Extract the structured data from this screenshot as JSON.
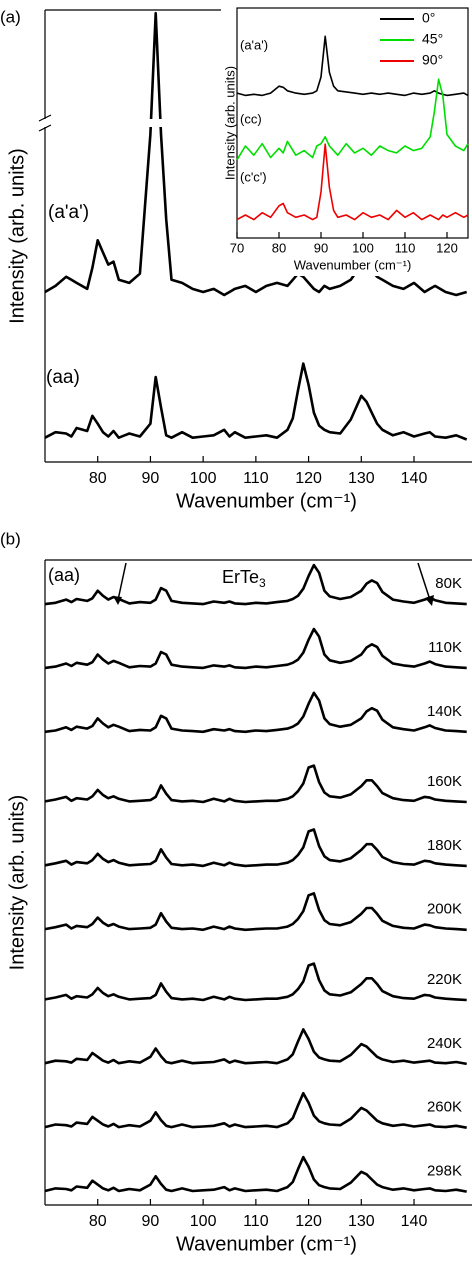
{
  "chart_data": [
    {
      "type": "line",
      "panel_label": "(a)",
      "x_label": "Wavenumber (cm⁻¹)",
      "y_label": "Intensity (arb. units)",
      "x": [
        70,
        72,
        74,
        75,
        76,
        78,
        79,
        80,
        81,
        82,
        83,
        84,
        86,
        88,
        90,
        91,
        92,
        93,
        94,
        96,
        98,
        100,
        102,
        104,
        105,
        106,
        108,
        110,
        112,
        114,
        116,
        117,
        118,
        119,
        120,
        121,
        122,
        123,
        124,
        126,
        128,
        130,
        131,
        132,
        133,
        134,
        136,
        138,
        140,
        142,
        143,
        144,
        146,
        148,
        150
      ],
      "xlim": [
        70,
        151
      ],
      "xticks": [
        80,
        90,
        100,
        110,
        120,
        130,
        140
      ],
      "ylim": [
        0,
        300
      ],
      "ybreak": [
        55,
        200
      ],
      "series": [
        {
          "name": "(a'a')",
          "color": "#000000",
          "values": [
            28.0,
            29.0,
            30.5,
            30.0,
            29.5,
            28.5,
            32.0,
            36.5,
            34.5,
            32.5,
            33.0,
            30.0,
            29.5,
            31.0,
            54.0,
            297,
            54.0,
            40.0,
            30.0,
            29.5,
            28.5,
            28.0,
            28.5,
            27.5,
            28.0,
            28.5,
            29.0,
            28.0,
            29.0,
            29.5,
            29.0,
            30.0,
            31.0,
            30.5,
            29.5,
            28.5,
            28.0,
            29.0,
            28.5,
            29.0,
            30.0,
            32.5,
            32.0,
            31.5,
            30.5,
            30.0,
            29.0,
            28.5,
            29.5,
            28.0,
            28.5,
            29.0,
            28.0,
            27.5,
            28.0
          ]
        },
        {
          "name": "(aa)",
          "color": "#000000",
          "values": [
            4.0,
            4.9,
            4.7,
            4.2,
            5.6,
            5.1,
            7.6,
            6.3,
            4.9,
            4.2,
            5.1,
            4.0,
            4.7,
            4.2,
            6.3,
            14.0,
            9.0,
            4.4,
            4.0,
            4.9,
            4.0,
            4.2,
            4.4,
            5.3,
            4.2,
            4.9,
            4.0,
            4.2,
            4.4,
            4.0,
            5.3,
            7.2,
            11.8,
            16.2,
            12.7,
            8.1,
            6.0,
            5.3,
            4.9,
            4.7,
            7.0,
            10.9,
            9.9,
            8.1,
            6.3,
            5.3,
            4.4,
            4.9,
            4.2,
            4.7,
            4.9,
            4.2,
            4.0,
            4.4,
            3.7
          ]
        }
      ]
    },
    {
      "type": "line",
      "x_label": "Wavenumber (cm⁻¹)",
      "y_label": "Intensity (arb. units)",
      "x": [
        70,
        72,
        74,
        76,
        78,
        80,
        81,
        82,
        84,
        86,
        88,
        89,
        90,
        91,
        92,
        93,
        94,
        96,
        98,
        100,
        102,
        104,
        106,
        108,
        110,
        112,
        114,
        116,
        117,
        118,
        119,
        120,
        122,
        124,
        125
      ],
      "xlim": [
        70,
        125
      ],
      "xticks": [
        70,
        80,
        90,
        100,
        110,
        120
      ],
      "ylim": [
        0,
        100
      ],
      "legend": "upper right",
      "annotations": [
        "(a'a')",
        "(cc)",
        "(c'c')"
      ],
      "series": [
        {
          "name": "0°",
          "color": "#000000",
          "values": [
            63,
            62,
            62.5,
            62,
            63,
            66,
            65.5,
            64,
            63,
            62.5,
            63,
            64,
            70,
            87.7,
            72,
            66,
            64,
            63.5,
            63,
            62.5,
            63,
            62.5,
            63,
            62.5,
            62,
            63,
            62.5,
            63,
            64,
            63,
            62.5,
            62,
            62.5,
            63,
            62
          ]
        },
        {
          "name": "45°",
          "color": "#00dd00",
          "values": [
            34,
            40,
            36,
            41,
            35,
            39,
            37,
            42,
            36,
            38,
            35,
            40,
            41,
            44,
            40,
            38,
            36,
            41,
            37,
            39,
            36,
            40,
            38,
            37,
            40,
            38,
            39,
            44,
            55,
            69,
            62,
            45,
            40,
            38,
            41
          ]
        },
        {
          "name": "90°",
          "color": "#ee0000",
          "values": [
            8,
            10,
            8,
            11,
            9,
            14,
            15,
            11,
            9,
            10,
            8,
            9,
            20,
            40.8,
            22,
            12,
            9,
            10,
            8,
            11,
            9,
            10,
            8,
            12,
            9,
            11,
            8,
            10,
            9,
            8,
            10,
            9,
            11,
            9,
            10
          ]
        }
      ]
    },
    {
      "type": "line",
      "panel_label": "(b)",
      "x_label": "Wavenumber (cm⁻¹)",
      "y_label": "Intensity (arb. units)",
      "annotation": "(aa)",
      "compound": "ErTe",
      "compound_sub": "3",
      "x": [
        70,
        72,
        74,
        75,
        76,
        78,
        79,
        80,
        81,
        82,
        83,
        84,
        86,
        88,
        90,
        91,
        92,
        93,
        94,
        96,
        98,
        100,
        102,
        104,
        105,
        106,
        108,
        110,
        112,
        114,
        116,
        117,
        118,
        119,
        120,
        121,
        122,
        123,
        124,
        126,
        128,
        130,
        131,
        132,
        133,
        134,
        136,
        138,
        140,
        142,
        143,
        144,
        146,
        148,
        150
      ],
      "xlim": [
        70,
        151
      ],
      "xticks": [
        80,
        90,
        100,
        110,
        120,
        130,
        140
      ],
      "ylim": [
        0,
        101
      ],
      "series": [
        {
          "name": "80K",
          "color": "#000000",
          "values": [
            94.1,
            94.3,
            94.8,
            94.4,
            94.9,
            94.6,
            95.0,
            96.2,
            95.4,
            94.8,
            95.2,
            94.9,
            94.2,
            94.4,
            94.3,
            94.8,
            96.6,
            96.2,
            94.6,
            94.3,
            94.2,
            94.1,
            94.5,
            94.3,
            94.5,
            94.2,
            94.1,
            94.3,
            94.2,
            94.4,
            94.6,
            94.9,
            95.4,
            96.5,
            98.5,
            100.2,
            99.0,
            96.2,
            95.3,
            94.9,
            95.2,
            96.2,
            97.3,
            97.8,
            97.4,
            96.0,
            94.8,
            94.5,
            94.3,
            94.8,
            95.1,
            94.7,
            94.3,
            94.2,
            94.1
          ]
        },
        {
          "name": "110K",
          "color": "#000000",
          "values": [
            84.1,
            84.3,
            84.8,
            84.4,
            84.9,
            84.6,
            85.0,
            86.2,
            85.4,
            84.8,
            85.2,
            84.9,
            84.2,
            84.4,
            84.3,
            84.8,
            86.6,
            86.2,
            84.6,
            84.3,
            84.2,
            84.1,
            84.5,
            84.3,
            84.5,
            84.2,
            84.1,
            84.3,
            84.2,
            84.4,
            84.6,
            84.9,
            85.4,
            86.5,
            88.5,
            90.2,
            89.0,
            86.2,
            85.3,
            84.9,
            85.2,
            86.2,
            87.3,
            87.8,
            87.4,
            86.0,
            84.8,
            84.5,
            84.3,
            84.8,
            85.1,
            84.7,
            84.3,
            84.2,
            84.1
          ]
        },
        {
          "name": "140K",
          "color": "#000000",
          "values": [
            74.1,
            74.3,
            74.8,
            74.4,
            74.9,
            74.6,
            75.0,
            76.2,
            75.4,
            74.8,
            75.2,
            74.9,
            74.2,
            74.4,
            74.3,
            74.8,
            76.6,
            76.2,
            74.6,
            74.3,
            74.2,
            74.1,
            74.5,
            74.3,
            74.5,
            74.2,
            74.1,
            74.3,
            74.2,
            74.4,
            74.6,
            74.9,
            75.4,
            76.5,
            78.5,
            80.2,
            79.0,
            76.2,
            75.3,
            74.9,
            75.2,
            76.2,
            77.3,
            77.8,
            77.4,
            76.0,
            74.8,
            74.5,
            74.3,
            74.8,
            75.1,
            74.7,
            74.3,
            74.2,
            74.1
          ]
        },
        {
          "name": "160K",
          "color": "#000000",
          "values": [
            63.2,
            63.5,
            63.9,
            63.3,
            63.7,
            63.5,
            64.0,
            65.0,
            64.2,
            63.7,
            64.0,
            63.6,
            63.2,
            63.3,
            63.4,
            63.9,
            65.7,
            64.4,
            63.4,
            63.2,
            63.3,
            63.1,
            63.6,
            63.2,
            63.6,
            63.3,
            63.1,
            63.2,
            63.3,
            63.3,
            63.6,
            64.0,
            64.8,
            66.0,
            68.5,
            68.8,
            66.2,
            64.6,
            64.0,
            63.8,
            64.3,
            65.6,
            66.5,
            66.5,
            65.6,
            64.5,
            63.7,
            63.4,
            63.3,
            63.9,
            63.8,
            63.5,
            63.3,
            63.2,
            63.1
          ]
        },
        {
          "name": "180K",
          "color": "#000000",
          "values": [
            53.2,
            53.5,
            53.9,
            53.3,
            53.7,
            53.5,
            54.0,
            55.0,
            54.2,
            53.7,
            54.0,
            53.6,
            53.2,
            53.3,
            53.4,
            53.9,
            55.7,
            54.4,
            53.4,
            53.2,
            53.3,
            53.1,
            53.6,
            53.2,
            53.6,
            53.3,
            53.1,
            53.2,
            53.3,
            53.3,
            53.6,
            54.0,
            54.8,
            56.0,
            58.5,
            58.8,
            56.2,
            54.6,
            54.0,
            53.8,
            54.3,
            55.6,
            56.5,
            56.5,
            55.6,
            54.5,
            53.7,
            53.4,
            53.3,
            53.9,
            53.8,
            53.5,
            53.3,
            53.2,
            53.1
          ]
        },
        {
          "name": "200K",
          "color": "#000000",
          "values": [
            43.2,
            43.5,
            43.9,
            43.3,
            43.7,
            43.5,
            44.0,
            45.0,
            44.2,
            43.7,
            44.0,
            43.6,
            43.2,
            43.3,
            43.4,
            43.9,
            45.7,
            44.4,
            43.4,
            43.2,
            43.3,
            43.1,
            43.6,
            43.2,
            43.6,
            43.3,
            43.1,
            43.2,
            43.3,
            43.3,
            43.6,
            44.0,
            44.8,
            46.0,
            48.5,
            48.8,
            46.2,
            44.6,
            44.0,
            43.8,
            44.3,
            45.6,
            46.5,
            46.5,
            45.6,
            44.5,
            43.7,
            43.4,
            43.3,
            43.9,
            43.8,
            43.5,
            43.3,
            43.2,
            43.1
          ]
        },
        {
          "name": "220K",
          "color": "#000000",
          "values": [
            32.2,
            32.5,
            32.9,
            32.3,
            32.7,
            32.5,
            33.0,
            34.0,
            33.2,
            32.7,
            33.0,
            32.6,
            32.2,
            32.3,
            32.4,
            32.9,
            34.7,
            33.4,
            32.4,
            32.2,
            32.3,
            32.1,
            32.6,
            32.2,
            32.6,
            32.3,
            32.1,
            32.2,
            32.3,
            32.3,
            32.6,
            33.0,
            33.8,
            35.0,
            37.5,
            37.8,
            35.2,
            33.6,
            33.0,
            32.8,
            33.3,
            34.6,
            35.5,
            35.5,
            34.6,
            33.5,
            32.7,
            32.4,
            32.3,
            32.9,
            32.8,
            32.5,
            32.3,
            32.2,
            32.1
          ]
        },
        {
          "name": "240K",
          "color": "#000000",
          "values": [
            22.2,
            22.6,
            22.5,
            22.3,
            22.9,
            22.7,
            23.8,
            23.2,
            22.6,
            22.3,
            22.7,
            22.2,
            22.5,
            22.3,
            23.2,
            24.5,
            23.3,
            22.4,
            22.2,
            22.6,
            22.2,
            22.3,
            22.4,
            22.8,
            22.3,
            22.6,
            22.2,
            22.3,
            22.4,
            22.2,
            22.8,
            23.6,
            25.6,
            27.5,
            26.0,
            24.0,
            23.1,
            22.8,
            22.6,
            22.5,
            23.5,
            25.2,
            24.8,
            24.0,
            23.2,
            22.8,
            22.4,
            22.6,
            22.3,
            22.5,
            22.6,
            22.3,
            22.2,
            22.4,
            22.1
          ]
        },
        {
          "name": "260K",
          "color": "#000000",
          "values": [
            12.2,
            12.6,
            12.5,
            12.3,
            12.9,
            12.7,
            13.8,
            13.2,
            12.6,
            12.3,
            12.7,
            12.2,
            12.5,
            12.3,
            13.2,
            14.5,
            13.3,
            12.4,
            12.2,
            12.6,
            12.2,
            12.3,
            12.4,
            12.8,
            12.3,
            12.6,
            12.2,
            12.3,
            12.4,
            12.2,
            12.8,
            13.6,
            15.6,
            17.5,
            16.0,
            14.0,
            13.1,
            12.8,
            12.6,
            12.5,
            13.5,
            15.2,
            14.8,
            14.0,
            13.2,
            12.8,
            12.4,
            12.6,
            12.3,
            12.5,
            12.6,
            12.3,
            12.2,
            12.4,
            12.1
          ]
        },
        {
          "name": "298K",
          "color": "#000000",
          "values": [
            2.2,
            2.6,
            2.5,
            2.3,
            2.9,
            2.7,
            3.8,
            3.2,
            2.6,
            2.3,
            2.7,
            2.2,
            2.5,
            2.3,
            3.2,
            4.5,
            3.3,
            2.4,
            2.2,
            2.6,
            2.2,
            2.3,
            2.4,
            2.8,
            2.3,
            2.6,
            2.2,
            2.3,
            2.4,
            2.2,
            2.8,
            3.6,
            5.6,
            7.5,
            6.0,
            4.0,
            3.1,
            2.8,
            2.6,
            2.5,
            3.5,
            5.2,
            4.8,
            4.0,
            3.2,
            2.8,
            2.4,
            2.6,
            2.3,
            2.5,
            2.6,
            2.3,
            2.2,
            2.4,
            2.1
          ]
        }
      ]
    }
  ]
}
